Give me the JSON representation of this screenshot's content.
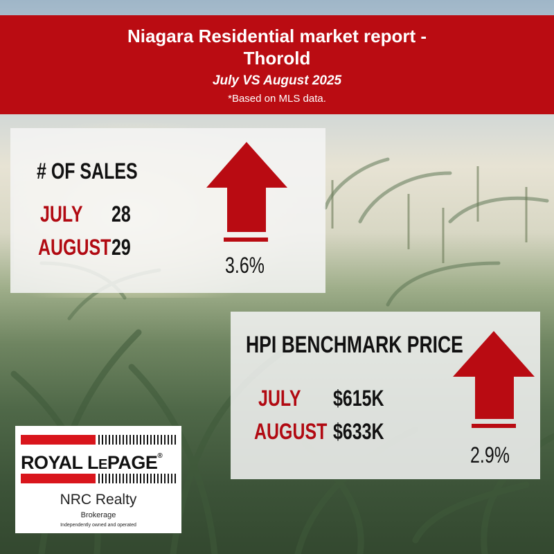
{
  "header": {
    "title_line1": "Niagara Residential market report -",
    "title_line2": "Thorold",
    "subtitle": "July VS August 2025",
    "note": "*Based on MLS data."
  },
  "sales": {
    "heading": "# OF SALES",
    "rows": [
      {
        "label": "JULY",
        "value": "28"
      },
      {
        "label": "AUGUST",
        "value": "29"
      }
    ],
    "change": "3.6%",
    "direction": "up"
  },
  "hpi": {
    "heading": "HPI BENCHMARK PRICE",
    "rows": [
      {
        "label": "JULY",
        "value": "$615K"
      },
      {
        "label": "AUGUST",
        "value": "$633K"
      }
    ],
    "change": "2.9%",
    "direction": "up"
  },
  "logo": {
    "brand_part1": "ROYAL L",
    "brand_small_e": "E",
    "brand_part2": "PAGE",
    "reg_mark": "®",
    "office": "NRC Realty",
    "type": "Brokerage",
    "tagline": "Independently owned and operated"
  },
  "colors": {
    "brand_red": "#ba0c12",
    "arrow_red": "#b90b12",
    "text_dark": "#111111"
  },
  "icons": [
    "arrow-up-icon",
    "arrow-up-icon"
  ]
}
